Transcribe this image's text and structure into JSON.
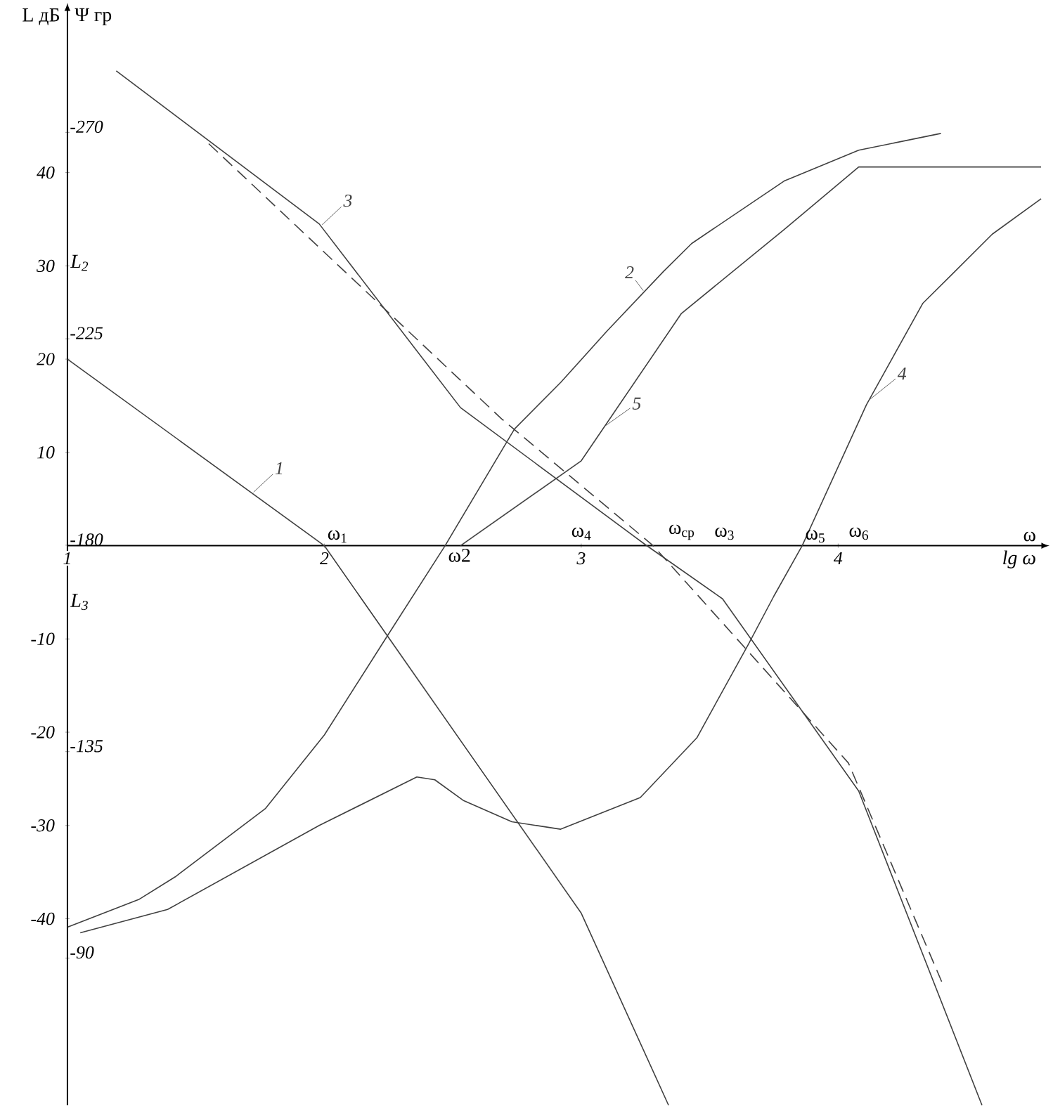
{
  "chart_data": {
    "type": "line",
    "xlabel": "lg ω",
    "ylabel": "L дБ",
    "y2label": "Ψ гр",
    "xlim": [
      1,
      4.79
    ],
    "ylim": [
      -60,
      57.3
    ],
    "y2lim": [
      -57.9,
      -296.4
    ],
    "xticks": [
      1,
      2,
      3,
      4
    ],
    "yticks": [
      -40,
      -30,
      -20,
      -10,
      10,
      20,
      30,
      40
    ],
    "y2ticks": [
      -270,
      -225,
      -180,
      -135,
      -90
    ],
    "grid": false,
    "legend": false,
    "marker": "none",
    "series": [
      {
        "name": "1",
        "color": "#404040",
        "x": [
          1,
          2,
          3.0,
          3.34
        ],
        "values": [
          20,
          0,
          -39.4,
          -60
        ]
      },
      {
        "name": "2",
        "color": "#404040",
        "x": [
          1.0,
          1.28,
          1.42,
          1.77,
          2.0,
          2.24,
          2.47,
          2.74,
          2.92,
          3.1,
          3.32,
          3.43,
          3.79,
          4.08,
          4.4
        ],
        "values": [
          -40.9,
          -37.9,
          -35.5,
          -28.2,
          -20.3,
          -9.9,
          0,
          12.5,
          17.5,
          23.0,
          29.4,
          32.4,
          39.1,
          42.4,
          44.2
        ]
      },
      {
        "name": "3",
        "color": "#404040",
        "x": [
          1.19,
          1.98,
          2.53,
          3.25,
          3.55,
          4.08,
          4.56
        ],
        "values": [
          50.9,
          34.5,
          14.8,
          0.1,
          -5.7,
          -26.3,
          -60
        ]
      },
      {
        "name": "4",
        "color": "#404040",
        "x": [
          1.05,
          1.39,
          1.98,
          2.36,
          2.43,
          2.54,
          2.73,
          2.92,
          3.23,
          3.45,
          3.65,
          3.75,
          3.86,
          4.11,
          4.33,
          4.44,
          4.6,
          4.79
        ],
        "values": [
          -41.5,
          -39.0,
          -30.0,
          -24.8,
          -25.1,
          -27.3,
          -29.6,
          -30.4,
          -27.0,
          -20.6,
          -10.6,
          -5.4,
          0,
          15.1,
          26.0,
          29.0,
          33.4,
          37.2
        ]
      },
      {
        "name": "5",
        "color": "#404040",
        "x": [
          2.53,
          3.0,
          3.39,
          3.79,
          4.08,
          4.79
        ],
        "values": [
          0,
          9.1,
          24.9,
          33.9,
          40.6,
          40.6
        ]
      },
      {
        "color": "#404040",
        "line_style": "dashed",
        "x": [
          1.55,
          2.69,
          3.28,
          4.04,
          4.41
        ],
        "values": [
          43.1,
          13.6,
          0,
          -23.3,
          -47.2
        ]
      }
    ],
    "annotations": [
      {
        "text": "ω$_{1}$",
        "x": 2,
        "y": 0
      },
      {
        "text": "ω2",
        "x": 2.47,
        "y": 0
      },
      "ω$_{4}$",
      "ω$_{ср}$",
      "ω$_{3}$",
      {
        "text": "ω$_{5}$",
        "x": 3.86,
        "y": 0
      },
      "ω$_{6}$",
      "ω",
      "L$_{2}$",
      "L$_{3}$"
    ]
  }
}
